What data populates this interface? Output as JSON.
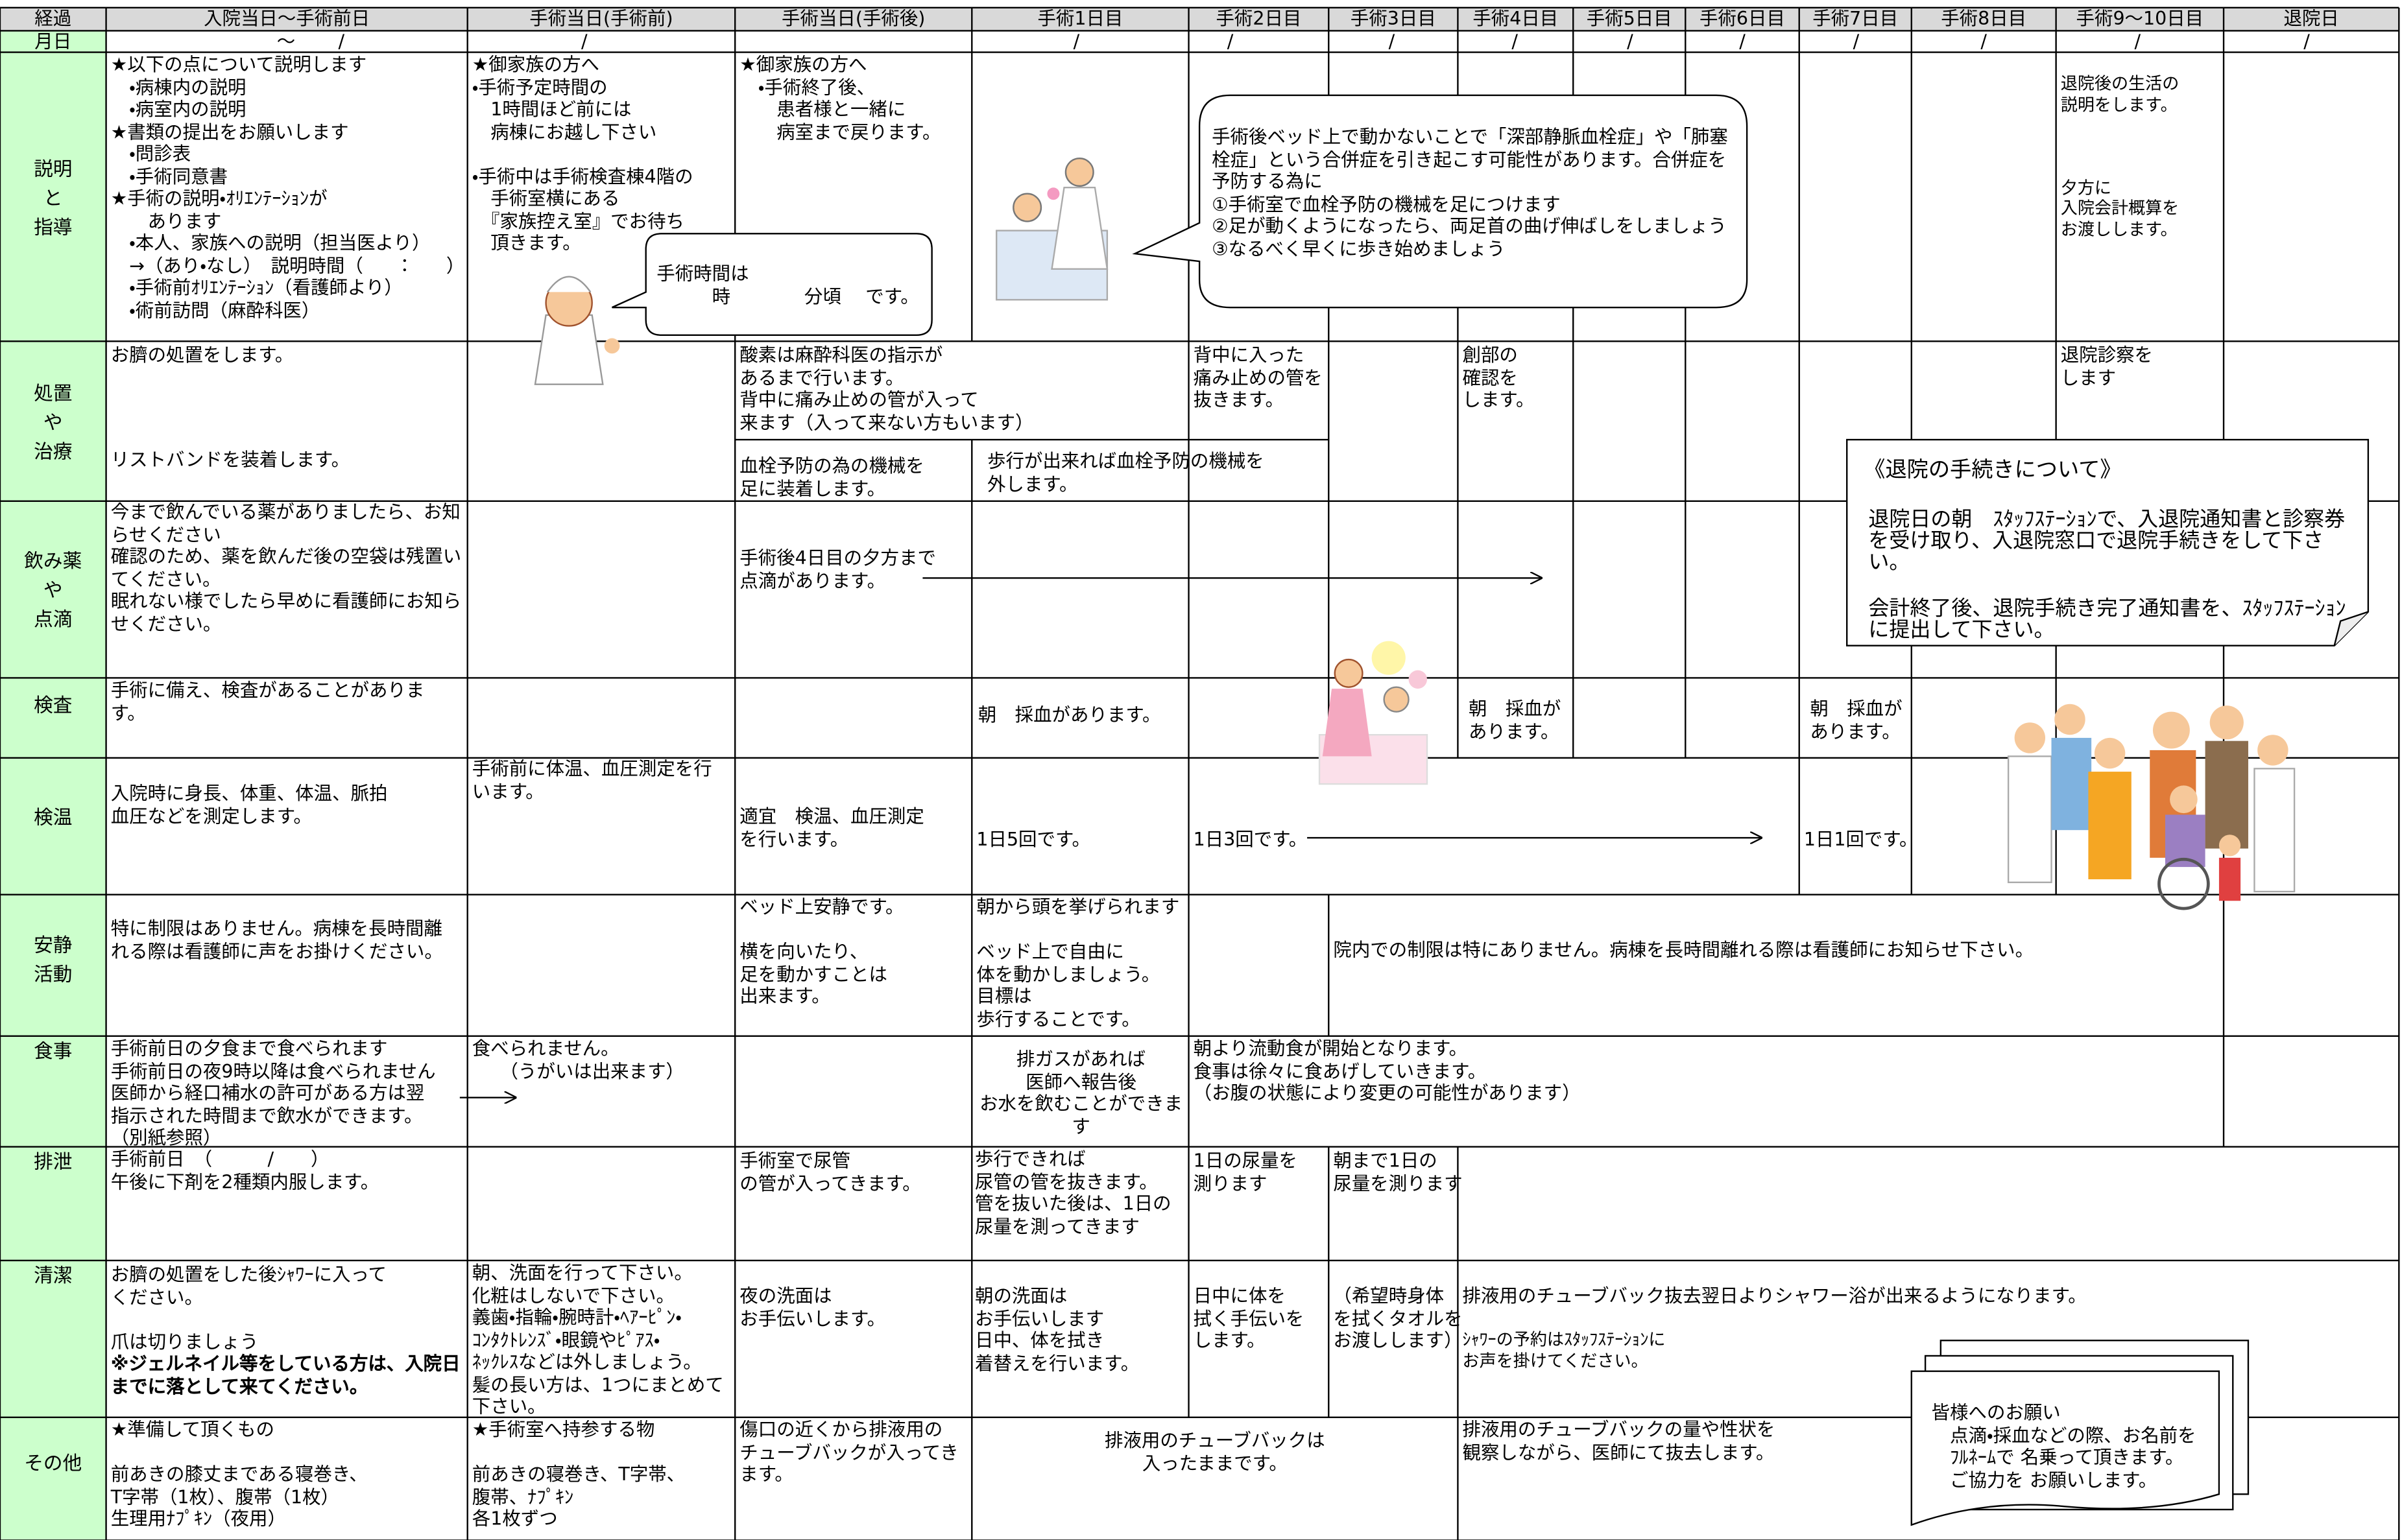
{
  "header": {
    "corner": "経過",
    "columns": [
      "入院当日～手術前日",
      "手術当日(手術前)",
      "手術当日(手術後)",
      "手術1日目",
      "手術2日目",
      "手術3日目",
      "手術4日目",
      "手術5日目",
      "手術6日目",
      "手術7日目",
      "手術8日目",
      "手術9～10日目",
      "退院日"
    ]
  },
  "dates": {
    "label": "月日",
    "marks": [
      "～",
      "/",
      "/",
      "/",
      "/",
      "/",
      "/",
      "/",
      "/",
      "/",
      "/",
      "/",
      "/"
    ]
  },
  "rows": [
    {
      "label": "説明\nと\n指導",
      "cells": [
        "★以下の点について説明します\n　・病棟内の説明\n　・病室内の説明\n★書類の提出をお願いします\n　・問診表\n　・手術同意書\n★手術の説明・ｵﾘｴﾝﾃｰｼｮﾝが\n　　あります\n　・本人、家族への説明（担当医より）\n　→（あり・なし）　説明時間（　　：　　）\n　・手術前ｵﾘｴﾝﾃｰｼｮﾝ（看護師より）\n　・術前訪問（麻酔科医）",
        "★御家族の方へ\n・手術予定時間の\n　1時間ほど前には\n　病棟にお越し下さい\n\n・手術中は手術検査棟4階の\n　手術室横にある\n　『家族控え室』でお待ち\n　頂きます。",
        "手術時間は\n　　　時　　　　分頃　 です。",
        "★御家族の方へ\n　・手術終了後、\n　　患者様と一緒に\n　　病室まで戻ります。",
        "手術後ベッド上で動かないことで「深部静脈血栓症」や「肺塞栓症」という合併症を引き起こす可能性があります。合併症を予防する為に\n①手術室で血栓予防の機械を足につけます\n②足が動くようになったら、両足首の曲げ伸ばしをしましょう\n③なるべく早くに歩き始めましょう",
        "退院後の生活の\n説明をします。\n\n\n\n夕方に\n入院会計概算を\nお渡しします。"
      ]
    },
    {
      "label": "処置\nや\n治療",
      "cells": [
        "お臍の処置をします。",
        "リストバンドを装着します。",
        "酸素は麻酔科医の指示が\nあるまで行います。\n背中に痛み止めの管が入って\n来ます（入って来ない方もいます）",
        "血栓予防の為の機械を\n足に装着します。",
        "歩行が出来れば血栓予防の機械を\n外します。",
        "背中に入った\n痛み止めの管を\n抜きます。",
        "創部の\n確認を\nします。",
        "退院診察を\nします",
        "《退院の手続きについて》",
        "退院日の朝　ｽﾀｯﾌｽﾃｰｼｮﾝで、入退院通知書と診察券を受け取り、入退院窓口で退院手続きをして下さい。",
        "会計終了後、退院手続き完了通知書を、ｽﾀｯﾌｽﾃｰｼｮﾝに提出して下さい。"
      ]
    },
    {
      "label": "飲み薬\nや\n点滴",
      "cells": [
        "今まで飲んでいる薬がありましたら、お知らせください\n確認のため、薬を飲んだ後の空袋は残置いてください。\n眠れない様でしたら早めに看護師にお知らせください。",
        "手術後4日目の夕方まで\n点滴があります。"
      ]
    },
    {
      "label": "検査",
      "cells": [
        "手術に備え、検査があることがありま\nす。",
        "朝　採血があります。",
        "朝　採血が\nあります。",
        "朝　採血が\nあります。"
      ]
    },
    {
      "label": "検温",
      "cells": [
        "入院時に身長、体重、体温、脈拍\n血圧などを測定します。",
        "手術前に体温、血圧測定を行\nいます。",
        "適宜　検温、血圧測定\nを行います。",
        "1日5回です。",
        "1日3回です。",
        "1日1回です。"
      ]
    },
    {
      "label": "安静\n活動",
      "cells": [
        "特に制限はありません。病棟を長時間離\nれる際は看護師に声をお掛けください。",
        "ベッド上安静です。\n\n横を向いたり、\n足を動かすことは\n出来ます。",
        "朝から頭を挙げられます\n\nベッド上で自由に\n体を動かしましょう。\n目標は\n歩行することです。",
        "院内での制限は特にありません。病棟を長時間離れる際は看護師にお知らせ下さい。"
      ]
    },
    {
      "label": "食事",
      "cells": [
        "手術前日の夕食まで食べられます\n手術前日の夜9時以降は食べられません\n医師から経口補水の許可がある方は翌\n指示された時間まで飲水ができます。\n（別紙参照）",
        "食べられません。\n　　（うがいは出来ます）",
        "排ガスがあれば\n医師へ報告後\nお水を飲むことができま\nす",
        "朝より流動食が開始となります。\n食事は徐々に食あげしていきます。\n（お腹の状態により変更の可能性があります）"
      ]
    },
    {
      "label": "排泄",
      "cells": [
        "手術前日　（　　　/　　）\n午後に下剤を2種類内服します。",
        "手術室で尿管\nの管が入ってきます。",
        "歩行できれば\n尿管の管を抜きます。\n管を抜いた後は、1日の\n尿量を測ってきます",
        "1日の尿量を\n測ります",
        "朝まで1日の\n尿量を測ります"
      ]
    },
    {
      "label": "清潔",
      "cells": [
        "お臍の処置をした後ｼｬﾜｰに入って\nください。\n\n爪は切りましょう",
        "※ジェルネイル等をしている方は、入院日までに落として来てください。",
        "朝、洗面を行って下さい。\n化粧はしないで下さい。\n義歯・指輪・腕時計・ﾍｱｰﾋﾟﾝ・\nｺﾝﾀｸﾄﾚﾝｽﾞ・眼鏡やﾋﾟｱｽ・\nﾈｯｸﾚｽなどは外しましょう。\n髪の長い方は、1つにまとめて\n下さい。",
        "夜の洗面は\nお手伝いします。",
        "朝の洗面は\nお手伝いします\n日中、体を拭き\n着替えを行います。",
        "日中に体を\n拭く手伝いを\nします。",
        "（希望時身体\nを拭くタオルを\nお渡しします）",
        "排液用のチューブバック抜去翌日よりシャワー浴が出来るようになります。",
        "ｼｬﾜｰの予約はｽﾀｯﾌｽﾃｰｼｮﾝに\nお声を掛けてください。",
        "皆様へのお願い\n　点滴・採血などの際、お名前を\n　ﾌﾙﾈｰﾑで 名乗って頂きます。\n　ご協力を お願いします。"
      ]
    },
    {
      "label": "その他",
      "cells": [
        "★準備して頂くもの\n\n前あきの膝丈まである寝巻き、\nT字帯（1枚）、腹帯（1枚）\n生理用ﾅﾌﾟｷﾝ（夜用）",
        "★手術室へ持参する物\n\n前あきの寝巻き、T字帯、\n腹帯、ﾅﾌﾟｷﾝ\n各1枚ずつ",
        "傷口の近くから排液用の\nチューブバックが入ってき\nます。",
        "排液用のチューブバックは\n入ったままです。",
        "排液用のチューブバックの量や性状を\n観察しながら、医師にて抜去します。"
      ]
    }
  ]
}
